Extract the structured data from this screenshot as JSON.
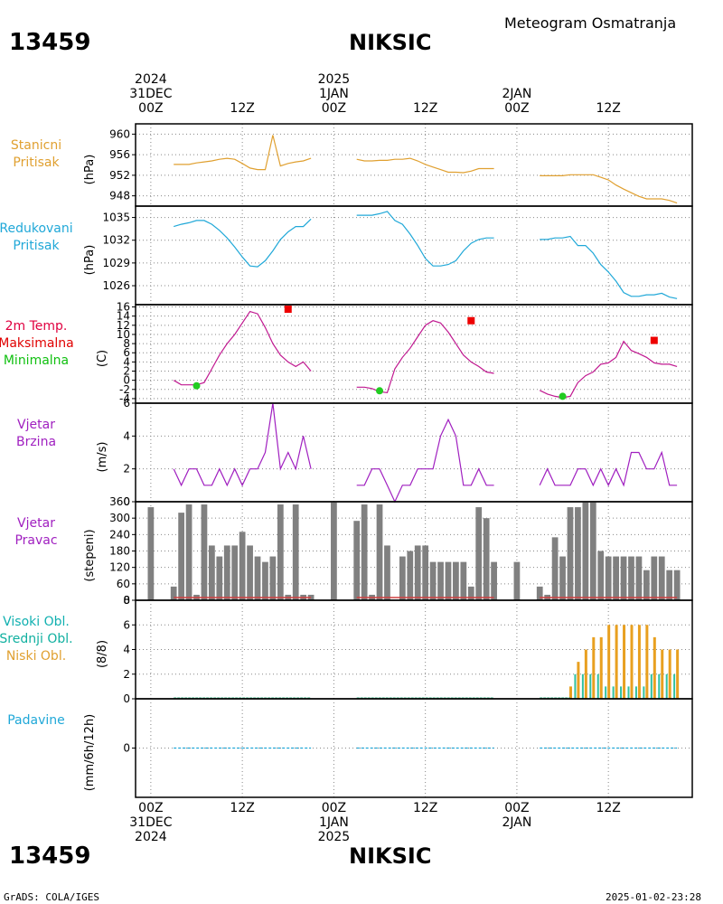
{
  "header": {
    "station_id": "13459",
    "station_name": "NIKSIC",
    "subtitle": "Meteogram Osmatranja"
  },
  "time_axis": {
    "top_dates": [
      {
        "line1": "2024",
        "line2": "31DEC",
        "line3": "00Z",
        "hour": 0
      },
      {
        "line1": "",
        "line2": "",
        "line3": "12Z",
        "hour": 12
      },
      {
        "line1": "2025",
        "line2": "1JAN",
        "line3": "00Z",
        "hour": 24
      },
      {
        "line1": "",
        "line2": "",
        "line3": "12Z",
        "hour": 36
      },
      {
        "line1": "",
        "line2": "2JAN",
        "line3": "00Z",
        "hour": 48
      },
      {
        "line1": "",
        "line2": "",
        "line3": "12Z",
        "hour": 60
      }
    ],
    "bottom_dates": [
      {
        "line1": "00Z",
        "line2": "31DEC",
        "line3": "2024",
        "hour": 0
      },
      {
        "line1": "12Z",
        "line2": "",
        "line3": "",
        "hour": 12
      },
      {
        "line1": "00Z",
        "line2": "1JAN",
        "line3": "2025",
        "hour": 24
      },
      {
        "line1": "12Z",
        "line2": "",
        "line3": "",
        "hour": 36
      },
      {
        "line1": "00Z",
        "line2": "2JAN",
        "line3": "",
        "hour": 48
      },
      {
        "line1": "12Z",
        "line2": "",
        "line3": "",
        "hour": 60
      }
    ]
  },
  "panels": {
    "station_pressure": {
      "label_lines": [
        "Stanicni",
        "Pritisak"
      ],
      "unit": "(hPa)",
      "color": "#e0a030"
    },
    "reduced_pressure": {
      "label_lines": [
        "Redukovani",
        "Pritisak"
      ],
      "unit": "(hPa)",
      "color": "#20a8d8"
    },
    "temperature": {
      "label_lines": [
        "2m Temp.",
        "Maksimalna",
        "Minimalna"
      ],
      "label_colors": [
        "#e00040",
        "#e00000",
        "#10c010"
      ],
      "unit": "(C)",
      "color": "#c01890"
    },
    "wind_speed": {
      "label_lines": [
        "Vjetar",
        "Brzina"
      ],
      "unit": "(m/s)",
      "color": "#a020c0"
    },
    "wind_dir": {
      "label_lines": [
        "Vjetar",
        "Pravac"
      ],
      "unit": "(stepeni)",
      "color": "#a020c0"
    },
    "clouds": {
      "label_lines": [
        "Visoki Obl.",
        "Srednji Obl.",
        "Niski Obl."
      ],
      "label_colors": [
        "#10b0b0",
        "#10b0a0",
        "#e0a030"
      ],
      "unit": "(8/8)"
    },
    "precip": {
      "label_lines": [
        "Padavine"
      ],
      "unit": "(mm/6h/12h)",
      "color": "#20a8d8"
    }
  },
  "chart_data": [
    {
      "type": "line",
      "panel": "station_pressure",
      "ylim": [
        946,
        962
      ],
      "yticks": [
        948,
        952,
        956,
        960
      ],
      "segments": [
        {
          "x": [
            3,
            4,
            5,
            6,
            7,
            8,
            9,
            10,
            11,
            12,
            13,
            14,
            15,
            16,
            17,
            18,
            19,
            20,
            21
          ],
          "y": [
            954.1,
            954.1,
            954.1,
            954.4,
            954.6,
            954.8,
            955.1,
            955.3,
            955.1,
            954.3,
            953.4,
            953.1,
            953.1,
            959.8,
            953.8,
            954.3,
            954.6,
            954.8,
            955.3
          ]
        },
        {
          "x": [
            27,
            28,
            29,
            30,
            31,
            32,
            33,
            34,
            35,
            36,
            37,
            38,
            39,
            40,
            41,
            42,
            43,
            44,
            45
          ],
          "y": [
            955.1,
            954.8,
            954.8,
            954.9,
            954.9,
            955.1,
            955.1,
            955.3,
            954.8,
            954.1,
            953.6,
            953.1,
            952.6,
            952.6,
            952.5,
            952.8,
            953.3,
            953.3,
            953.3
          ]
        },
        {
          "x": [
            51,
            52,
            53,
            54,
            55,
            56,
            57,
            58,
            59,
            60,
            61,
            62,
            63,
            64,
            65,
            66,
            67,
            68,
            69
          ],
          "y": [
            951.9,
            951.9,
            951.9,
            951.9,
            952.1,
            952.1,
            952.1,
            952.1,
            951.6,
            951.1,
            950.1,
            949.3,
            948.6,
            947.9,
            947.4,
            947.4,
            947.4,
            947.1,
            946.6
          ]
        }
      ]
    },
    {
      "type": "line",
      "panel": "reduced_pressure",
      "ylim": [
        1023.5,
        1036.5
      ],
      "yticks": [
        1026,
        1029,
        1032,
        1035
      ],
      "segments": [
        {
          "x": [
            3,
            4,
            5,
            6,
            7,
            8,
            9,
            10,
            11,
            12,
            13,
            14,
            15,
            16,
            17,
            18,
            19,
            20,
            21
          ],
          "y": [
            1033.8,
            1034.1,
            1034.3,
            1034.6,
            1034.6,
            1034.1,
            1033.3,
            1032.3,
            1031.1,
            1029.8,
            1028.6,
            1028.5,
            1029.3,
            1030.6,
            1032.1,
            1033.1,
            1033.8,
            1033.8,
            1034.8
          ]
        },
        {
          "x": [
            27,
            28,
            29,
            30,
            31,
            32,
            33,
            34,
            35,
            36,
            37,
            38,
            39,
            40,
            41,
            42,
            43,
            44,
            45
          ],
          "y": [
            1035.3,
            1035.3,
            1035.3,
            1035.5,
            1035.8,
            1034.6,
            1034.1,
            1032.8,
            1031.3,
            1029.6,
            1028.6,
            1028.6,
            1028.8,
            1029.3,
            1030.6,
            1031.6,
            1032.1,
            1032.3,
            1032.3
          ]
        },
        {
          "x": [
            51,
            52,
            53,
            54,
            55,
            56,
            57,
            58,
            59,
            60,
            61,
            62,
            63,
            64,
            65,
            66,
            67,
            68,
            69
          ],
          "y": [
            1032.1,
            1032.1,
            1032.3,
            1032.3,
            1032.5,
            1031.3,
            1031.3,
            1030.3,
            1028.8,
            1027.8,
            1026.6,
            1025.1,
            1024.6,
            1024.6,
            1024.8,
            1024.8,
            1025.0,
            1024.5,
            1024.3
          ]
        }
      ]
    },
    {
      "type": "line",
      "panel": "temperature",
      "ylim": [
        -5,
        16.5
      ],
      "yticks": [
        -4,
        -2,
        0,
        2,
        4,
        6,
        8,
        10,
        12,
        14,
        16
      ],
      "segments": [
        {
          "x": [
            3,
            4,
            5,
            6,
            7,
            8,
            9,
            10,
            11,
            12,
            13,
            14,
            15,
            16,
            17,
            18,
            19,
            20,
            21
          ],
          "y": [
            0,
            -1,
            -1,
            -1,
            -0.5,
            2.5,
            5.5,
            8,
            10,
            12.5,
            15,
            14.5,
            11.5,
            8,
            5.5,
            4,
            3,
            4,
            2
          ]
        },
        {
          "x": [
            27,
            28,
            29,
            30,
            31,
            32,
            33,
            34,
            35,
            36,
            37,
            38,
            39,
            40,
            41,
            42,
            43,
            44,
            45
          ],
          "y": [
            -1.5,
            -1.5,
            -1.8,
            -2.5,
            -2.7,
            2.5,
            5,
            7,
            9.5,
            12,
            13,
            12.5,
            10.5,
            8,
            5.5,
            4,
            3,
            1.8,
            1.5
          ]
        },
        {
          "x": [
            51,
            52,
            53,
            54,
            55,
            56,
            57,
            58,
            59,
            60,
            61,
            62,
            63,
            64,
            65,
            66,
            67,
            68,
            69
          ],
          "y": [
            -2.2,
            -3,
            -3.5,
            -3.8,
            -3.5,
            -0.5,
            1,
            1.8,
            3.5,
            3.8,
            5,
            8.5,
            6.5,
            5.8,
            5,
            3.8,
            3.5,
            3.5,
            3
          ]
        }
      ],
      "max_points": {
        "x": [
          18,
          42,
          66
        ],
        "y": [
          15.5,
          13,
          8.7
        ]
      },
      "min_points": {
        "x": [
          6,
          30,
          54
        ],
        "y": [
          -1.2,
          -2.3,
          -3.5
        ]
      }
    },
    {
      "type": "line",
      "panel": "wind_speed",
      "ylim": [
        0,
        6
      ],
      "yticks": [
        0,
        2,
        4,
        6
      ],
      "segments": [
        {
          "x": [
            3,
            4,
            5,
            6,
            7,
            8,
            9,
            10,
            11,
            12,
            13,
            14,
            15,
            16,
            17,
            18,
            19,
            20,
            21
          ],
          "y": [
            2,
            1,
            2,
            2,
            1,
            1,
            2,
            1,
            2,
            1,
            2,
            2,
            3,
            6,
            2,
            3,
            2,
            4,
            2
          ]
        },
        {
          "x": [
            27,
            28,
            29,
            30,
            31,
            32,
            33,
            34,
            35,
            36,
            37,
            38,
            39,
            40,
            41,
            42,
            43,
            44,
            45
          ],
          "y": [
            1,
            1,
            2,
            2,
            1,
            0,
            1,
            1,
            2,
            2,
            2,
            4,
            5,
            4,
            1,
            1,
            2,
            1,
            1
          ]
        },
        {
          "x": [
            51,
            52,
            53,
            54,
            55,
            56,
            57,
            58,
            59,
            60,
            61,
            62,
            63,
            64,
            65,
            66,
            67,
            68,
            69
          ],
          "y": [
            1,
            2,
            1,
            1,
            1,
            2,
            2,
            1,
            2,
            1,
            2,
            1,
            3,
            3,
            2,
            2,
            3,
            1,
            1
          ]
        }
      ]
    },
    {
      "type": "bar",
      "panel": "wind_dir",
      "ylim": [
        0,
        360
      ],
      "yticks": [
        0,
        60,
        120,
        180,
        240,
        300,
        360
      ],
      "x": [
        0,
        3,
        4,
        5,
        6,
        7,
        8,
        9,
        10,
        11,
        12,
        13,
        14,
        15,
        16,
        17,
        18,
        19,
        20,
        21,
        24,
        27,
        28,
        29,
        30,
        31,
        32,
        33,
        34,
        35,
        36,
        37,
        38,
        39,
        40,
        41,
        42,
        43,
        44,
        45,
        48,
        51,
        52,
        53,
        54,
        55,
        56,
        57,
        58,
        59,
        60,
        61,
        62,
        63,
        64,
        65,
        66,
        67,
        68,
        69
      ],
      "values": [
        340,
        50,
        320,
        350,
        20,
        350,
        200,
        160,
        200,
        200,
        250,
        200,
        160,
        140,
        160,
        350,
        20,
        350,
        20,
        20,
        360,
        290,
        350,
        20,
        350,
        200,
        0,
        160,
        180,
        200,
        200,
        140,
        140,
        140,
        140,
        140,
        50,
        340,
        300,
        140,
        140,
        50,
        20,
        230,
        160,
        340,
        340,
        360,
        360,
        180,
        160,
        160,
        160,
        160,
        160,
        110,
        160,
        160,
        110,
        110
      ]
    },
    {
      "type": "bar",
      "panel": "clouds",
      "ylim": [
        0,
        8
      ],
      "yticks": [
        0,
        2,
        4,
        6,
        8
      ],
      "x": [
        55,
        56,
        57,
        58,
        59,
        60,
        61,
        62,
        63,
        64,
        65,
        66,
        67,
        68,
        69
      ],
      "series": [
        {
          "name": "Niski Obl.",
          "values": [
            1,
            3,
            4,
            5,
            5,
            6,
            6,
            6,
            6,
            6,
            6,
            5,
            4,
            4,
            4
          ]
        },
        {
          "name": "Srednji Obl.",
          "values": [
            0,
            2,
            2,
            2,
            2,
            1,
            1,
            1,
            1,
            1,
            1,
            2,
            2,
            2,
            2
          ]
        }
      ]
    },
    {
      "type": "line",
      "panel": "precip",
      "ylim": [
        -1,
        1
      ],
      "yticks": [
        0
      ],
      "segments": [
        {
          "x": [
            3,
            21
          ],
          "y": [
            0,
            0
          ]
        },
        {
          "x": [
            27,
            45
          ],
          "y": [
            0,
            0
          ]
        },
        {
          "x": [
            51,
            69
          ],
          "y": [
            0,
            0
          ]
        }
      ]
    }
  ],
  "footer": {
    "left": "GrADS: COLA/IGES",
    "right": "2025-01-02-23:28"
  }
}
